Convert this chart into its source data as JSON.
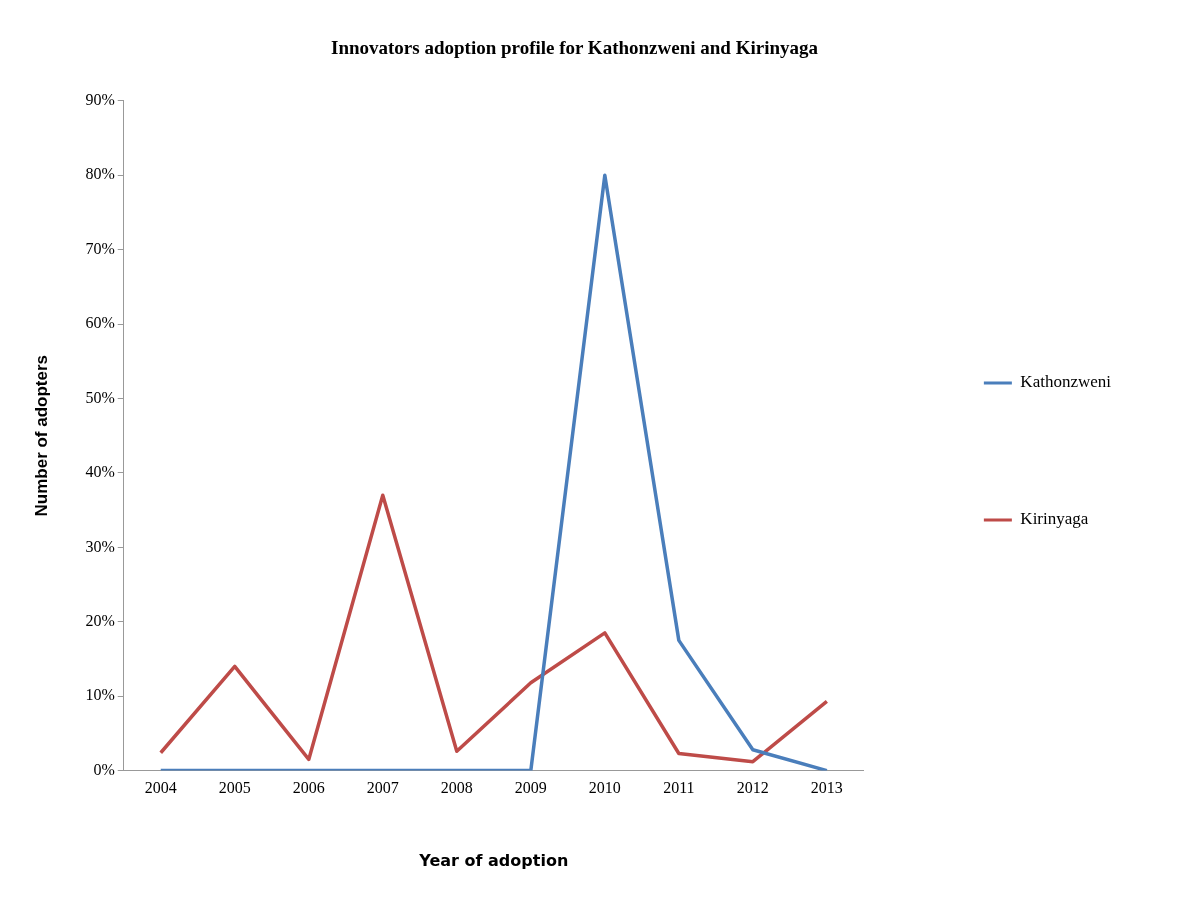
{
  "chart_data": {
    "type": "line",
    "title": "Innovators adoption profile for Kathonzweni and Kirinyaga",
    "xlabel": "Year of adoption",
    "ylabel": "Number of adopters",
    "categories": [
      "2004",
      "2005",
      "2006",
      "2007",
      "2008",
      "2009",
      "2010",
      "2011",
      "2012",
      "2013"
    ],
    "series": [
      {
        "name": "Kathonzweni",
        "color": "#4a7ebb",
        "values": [
          0,
          0,
          0,
          0,
          0,
          0,
          80,
          17.5,
          2.8,
          0
        ]
      },
      {
        "name": "Kirinyaga",
        "color": "#be4b48",
        "values": [
          2.4,
          14,
          1.5,
          37,
          2.6,
          11.8,
          18.5,
          2.3,
          1.2,
          9.3
        ]
      }
    ],
    "ylim": [
      0,
      90
    ],
    "yticks": [
      {
        "value": 0,
        "label": "0%"
      },
      {
        "value": 10,
        "label": "10%"
      },
      {
        "value": 20,
        "label": "20%"
      },
      {
        "value": 30,
        "label": "30%"
      },
      {
        "value": 40,
        "label": "40%"
      },
      {
        "value": 50,
        "label": "50%"
      },
      {
        "value": 60,
        "label": "60%"
      },
      {
        "value": 70,
        "label": "70%"
      },
      {
        "value": 80,
        "label": "80%"
      },
      {
        "value": 90,
        "label": "90%"
      }
    ],
    "grid": false,
    "legend": "right",
    "marker": "none",
    "line_style": "solid"
  }
}
